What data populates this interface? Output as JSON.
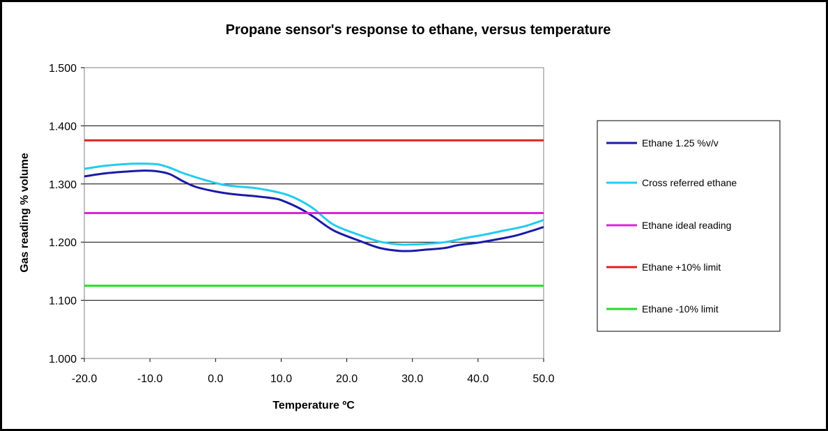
{
  "chart_data": {
    "type": "line",
    "title": "Propane sensor's response to ethane, versus temperature",
    "xlabel": "Temperature ºC",
    "ylabel": "Gas reading % volume",
    "xlim": [
      -20,
      50
    ],
    "ylim": [
      1.0,
      1.5
    ],
    "x_ticks": [
      "-20.0",
      "-10.0",
      "0.0",
      "10.0",
      "20.0",
      "30.0",
      "40.0",
      "50.0"
    ],
    "x_tick_values": [
      -20,
      -10,
      0,
      10,
      20,
      30,
      40,
      50
    ],
    "y_ticks": [
      "1.000",
      "1.100",
      "1.200",
      "1.300",
      "1.400",
      "1.500"
    ],
    "y_tick_values": [
      1.0,
      1.1,
      1.2,
      1.3,
      1.4,
      1.5
    ],
    "grid": "horizontal",
    "plot_background": "#ffffff",
    "legend_position": "right",
    "series": [
      {
        "name": "Ethane 1.25 %v/v",
        "color": "#1a1aa8",
        "points": [
          [
            -20,
            1.313
          ],
          [
            -17,
            1.318
          ],
          [
            -14,
            1.321
          ],
          [
            -11,
            1.323
          ],
          [
            -9,
            1.322
          ],
          [
            -7,
            1.317
          ],
          [
            -5,
            1.305
          ],
          [
            -3,
            1.295
          ],
          [
            0,
            1.287
          ],
          [
            3,
            1.282
          ],
          [
            6,
            1.279
          ],
          [
            9,
            1.275
          ],
          [
            10.5,
            1.27
          ],
          [
            13,
            1.257
          ],
          [
            15,
            1.243
          ],
          [
            18,
            1.22
          ],
          [
            22,
            1.202
          ],
          [
            25,
            1.19
          ],
          [
            28,
            1.185
          ],
          [
            30,
            1.185
          ],
          [
            32,
            1.187
          ],
          [
            35,
            1.19
          ],
          [
            37,
            1.195
          ],
          [
            40,
            1.199
          ],
          [
            43,
            1.205
          ],
          [
            46,
            1.212
          ],
          [
            50,
            1.226
          ]
        ]
      },
      {
        "name": "Cross referred ethane",
        "color": "#22ccee",
        "points": [
          [
            -20,
            1.326
          ],
          [
            -17,
            1.331
          ],
          [
            -14,
            1.334
          ],
          [
            -12,
            1.335
          ],
          [
            -9,
            1.334
          ],
          [
            -7,
            1.328
          ],
          [
            -5,
            1.319
          ],
          [
            -2,
            1.308
          ],
          [
            1,
            1.299
          ],
          [
            3,
            1.296
          ],
          [
            6,
            1.293
          ],
          [
            9,
            1.287
          ],
          [
            11,
            1.281
          ],
          [
            13,
            1.271
          ],
          [
            15,
            1.257
          ],
          [
            18,
            1.23
          ],
          [
            22,
            1.212
          ],
          [
            25,
            1.201
          ],
          [
            28,
            1.196
          ],
          [
            30,
            1.196
          ],
          [
            32,
            1.197
          ],
          [
            35,
            1.2
          ],
          [
            38,
            1.207
          ],
          [
            41,
            1.213
          ],
          [
            44,
            1.22
          ],
          [
            47,
            1.227
          ],
          [
            50,
            1.238
          ]
        ]
      },
      {
        "name": "Ethane ideal reading",
        "color": "#dd22dd",
        "points": [
          [
            -20,
            1.25
          ],
          [
            50,
            1.25
          ]
        ]
      },
      {
        "name": "Ethane +10% limit",
        "color": "#e02020",
        "points": [
          [
            -20,
            1.375
          ],
          [
            50,
            1.375
          ]
        ]
      },
      {
        "name": "Ethane -10% limit",
        "color": "#22dd22",
        "points": [
          [
            -20,
            1.125
          ],
          [
            50,
            1.125
          ]
        ]
      }
    ]
  }
}
